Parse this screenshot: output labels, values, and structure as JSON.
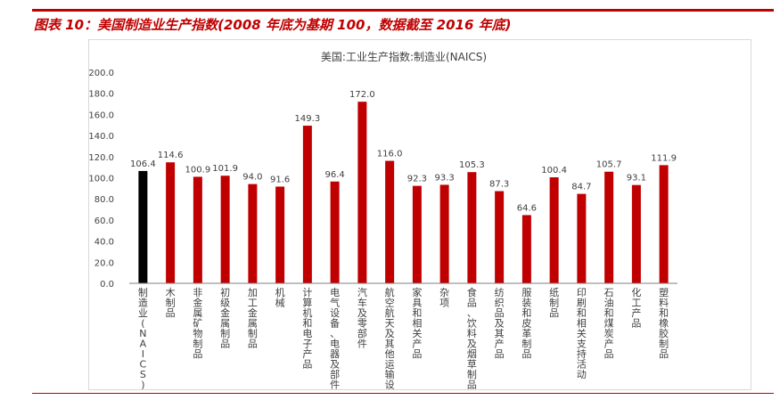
{
  "figure": {
    "title": "图表 10：美国制造业生产指数(2008 年底为基期 100，数据截至 2016 年底)"
  },
  "chart_data": {
    "type": "bar",
    "title": "美国:工业生产指数:制造业(NAICS)",
    "xlabel": "",
    "ylabel": "",
    "ylim": [
      0,
      200
    ],
    "yticks": [
      "0.0",
      "20.0",
      "40.0",
      "60.0",
      "80.0",
      "100.0",
      "120.0",
      "140.0",
      "160.0",
      "180.0",
      "200.0"
    ],
    "grid": false,
    "legend": "none",
    "categories": [
      "制造业(NAICS)",
      "木制品",
      "非金属矿物制品",
      "初级金属制品",
      "加工金属制品",
      "机械",
      "计算机和电子产品",
      "电气设备、电器及部件",
      "汽车及零部件",
      "航空航天及其他运输设备",
      "家具和相关产品",
      "杂项",
      "食品、饮料及烟草制品",
      "纺织品及其产品",
      "服装和皮革制品",
      "纸制品",
      "印刷和相关支持活动",
      "石油和煤炭产品",
      "化工产品",
      "塑料和橡胶制品"
    ],
    "values": [
      106.4,
      114.6,
      100.9,
      101.9,
      94.0,
      91.6,
      149.3,
      96.4,
      172.0,
      116.0,
      92.3,
      93.3,
      105.3,
      87.3,
      64.6,
      100.4,
      84.7,
      105.7,
      93.1,
      111.9
    ],
    "value_labels": [
      "106.4",
      "114.6",
      "100.9",
      "101.9",
      "94.0",
      "91.6",
      "149.3",
      "96.4",
      "172.0",
      "116.0",
      "92.3",
      "93.3",
      "105.3",
      "87.3",
      "64.6",
      "100.4",
      "84.7",
      "105.7",
      "93.1",
      "111.9"
    ],
    "colors": {
      "highlight": "#000000",
      "bar": "#c00000",
      "axis": "#7f7f7f",
      "text": "#404040"
    }
  }
}
